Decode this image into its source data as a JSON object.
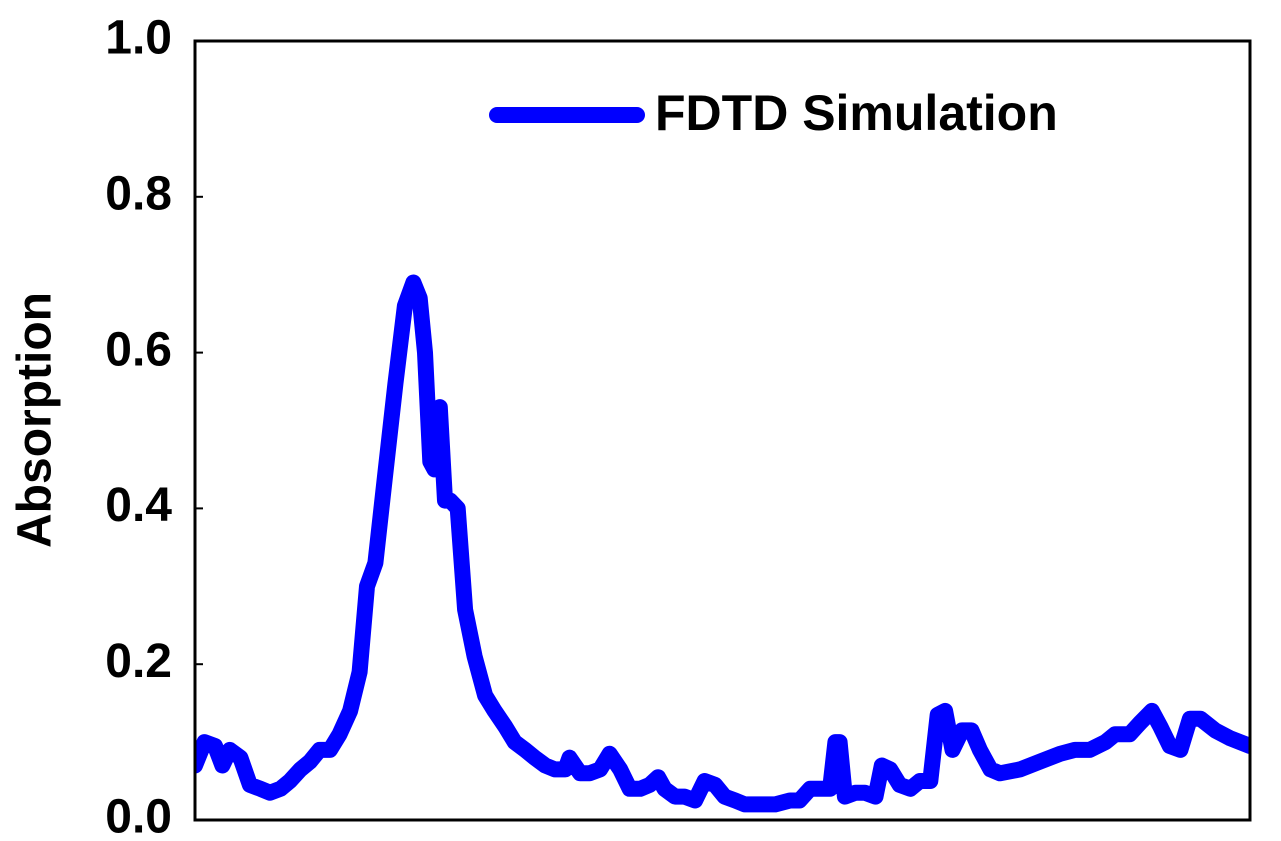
{
  "chart_data": {
    "type": "line",
    "y_label": "Absorption",
    "xlim": [
      0,
      100
    ],
    "ylim": [
      0,
      1.0
    ],
    "yticks": [
      {
        "value": 0,
        "label": "0.0"
      },
      0.2,
      0.4,
      0.6,
      0.8,
      {
        "value": 1,
        "label": "1.0"
      }
    ],
    "grid": false,
    "legend": "upper right",
    "series": [
      {
        "name": "FDTD Simulation",
        "color": "#0000ff",
        "x": [
          0,
          0.9,
          1.9,
          2.6,
          3.3,
          4.3,
          5.2,
          6.2,
          7.1,
          8.1,
          9.0,
          10.0,
          10.9,
          11.8,
          12.8,
          13.7,
          14.7,
          15.6,
          16.3,
          17.1,
          18.0,
          19.0,
          19.9,
          20.7,
          21.3,
          21.8,
          22.3,
          22.7,
          23.2,
          23.7,
          24.2,
          24.9,
          25.6,
          26.5,
          27.5,
          28.4,
          29.4,
          30.3,
          31.3,
          32.2,
          33.2,
          34.1,
          35.1,
          35.5,
          36.5,
          37.4,
          38.4,
          39.3,
          40.3,
          41.2,
          42.2,
          43.1,
          43.9,
          44.5,
          45.5,
          46.4,
          47.4,
          48.3,
          49.3,
          50.2,
          51.2,
          52.1,
          53.6,
          55.0,
          56.4,
          57.3,
          58.3,
          59.2,
          60.2,
          60.7,
          61.1,
          61.6,
          62.6,
          63.5,
          64.5,
          65.1,
          65.9,
          66.8,
          67.8,
          68.7,
          69.7,
          70.4,
          71.1,
          71.8,
          72.7,
          73.6,
          74.4,
          75.4,
          76.3,
          78.2,
          80.1,
          82.0,
          83.4,
          84.8,
          86.3,
          87.2,
          88.6,
          89.6,
          90.7,
          91.5,
          92.4,
          93.4,
          94.3,
          95.3,
          96.7,
          98.1,
          100
        ],
        "values": [
          0.07,
          0.1,
          0.095,
          0.07,
          0.09,
          0.08,
          0.045,
          0.04,
          0.035,
          0.04,
          0.05,
          0.065,
          0.075,
          0.09,
          0.09,
          0.11,
          0.14,
          0.19,
          0.3,
          0.33,
          0.44,
          0.56,
          0.66,
          0.69,
          0.67,
          0.6,
          0.46,
          0.45,
          0.53,
          0.41,
          0.41,
          0.4,
          0.27,
          0.21,
          0.16,
          0.14,
          0.12,
          0.1,
          0.09,
          0.08,
          0.07,
          0.065,
          0.065,
          0.08,
          0.06,
          0.06,
          0.065,
          0.085,
          0.065,
          0.04,
          0.04,
          0.045,
          0.055,
          0.04,
          0.03,
          0.03,
          0.025,
          0.05,
          0.045,
          0.03,
          0.025,
          0.02,
          0.02,
          0.02,
          0.025,
          0.025,
          0.04,
          0.04,
          0.04,
          0.1,
          0.1,
          0.03,
          0.035,
          0.035,
          0.03,
          0.07,
          0.065,
          0.045,
          0.04,
          0.05,
          0.05,
          0.135,
          0.14,
          0.09,
          0.115,
          0.115,
          0.09,
          0.065,
          0.06,
          0.065,
          0.075,
          0.085,
          0.09,
          0.09,
          0.1,
          0.11,
          0.11,
          0.125,
          0.14,
          0.12,
          0.095,
          0.09,
          0.13,
          0.13,
          0.115,
          0.105,
          0.095
        ]
      }
    ]
  }
}
